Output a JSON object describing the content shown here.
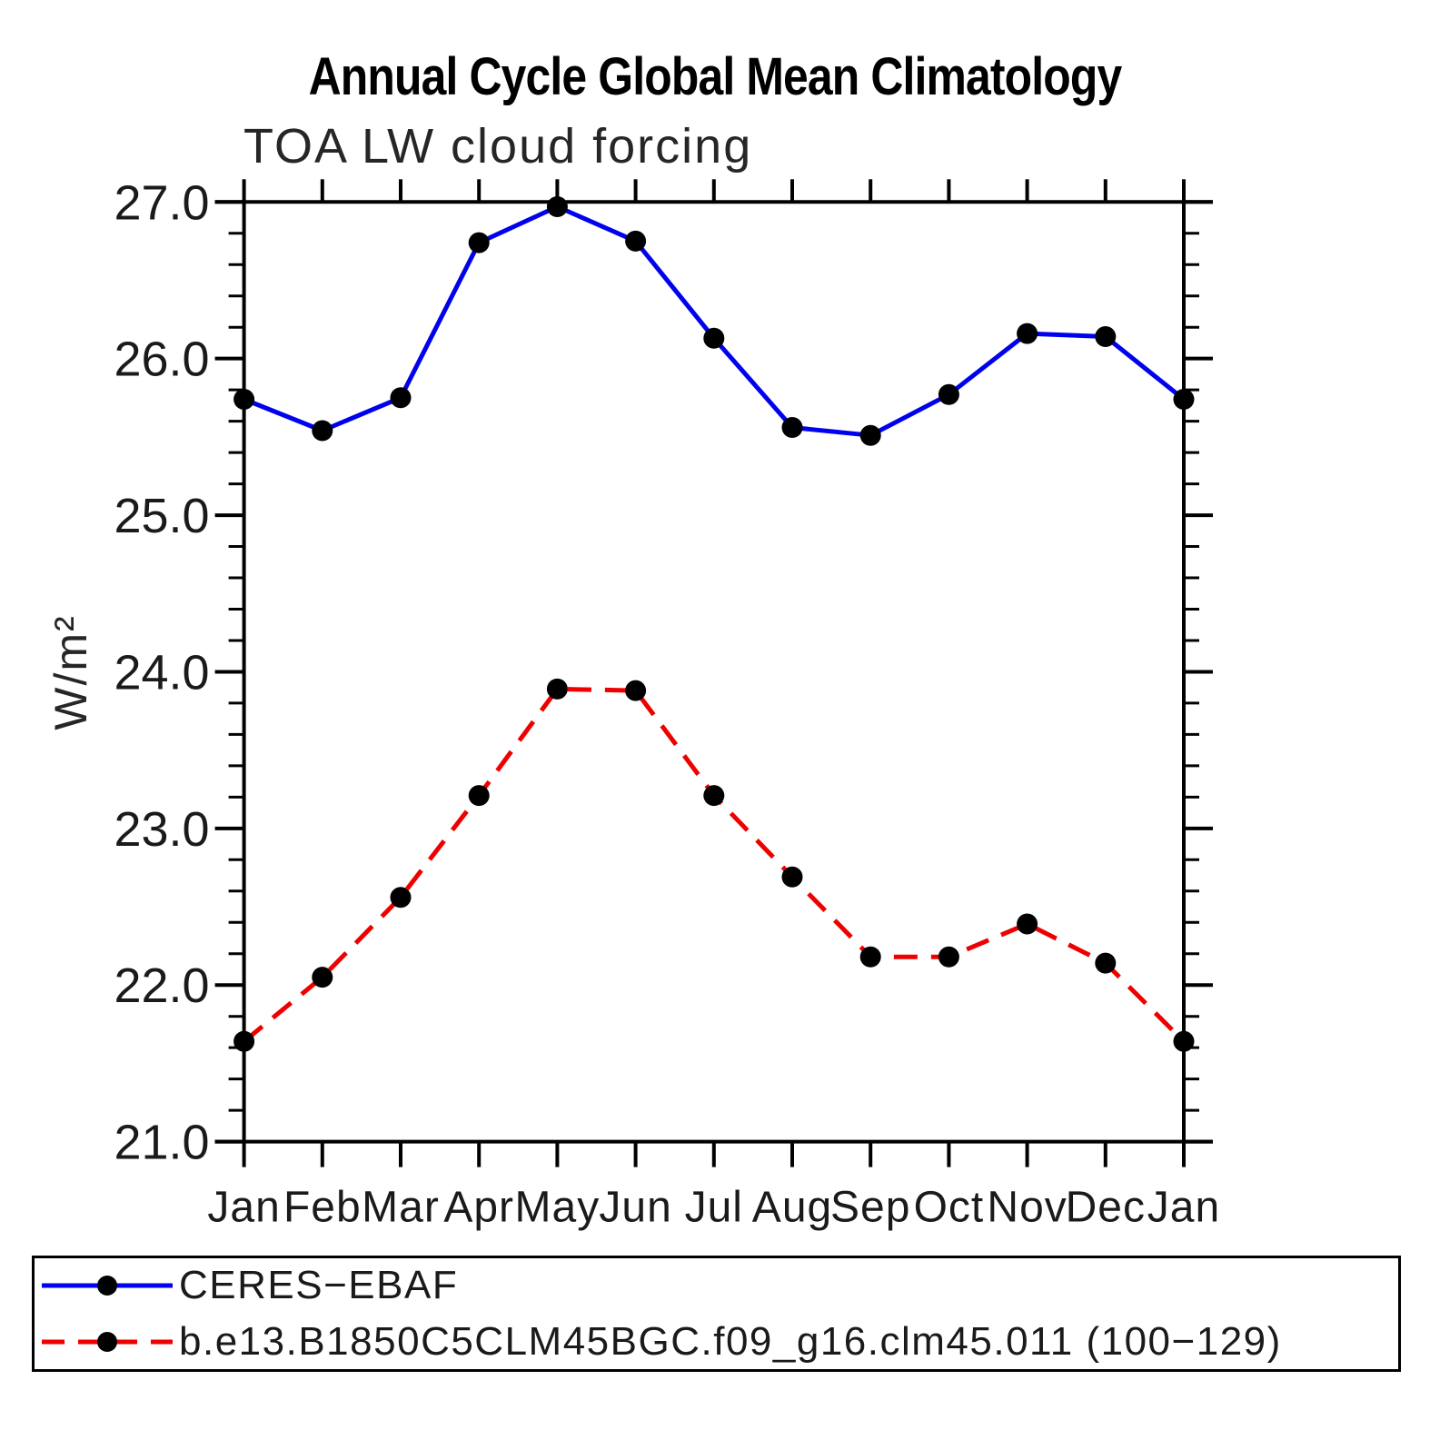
{
  "chart_data": {
    "type": "line",
    "title": "Annual Cycle Global Mean Climatology",
    "subtitle": "TOA LW cloud forcing",
    "ylabel": "W/m²",
    "xlabel": "",
    "categories": [
      "Jan",
      "Feb",
      "Mar",
      "Apr",
      "May",
      "Jun",
      "Jul",
      "Aug",
      "Sep",
      "Oct",
      "Nov",
      "Dec",
      "Jan"
    ],
    "ylim": [
      21.0,
      27.0
    ],
    "y_major_step": 1.0,
    "y_minor_step": 0.2,
    "y_tick_labels": [
      "21.0",
      "22.0",
      "23.0",
      "24.0",
      "25.0",
      "26.0",
      "27.0"
    ],
    "grid": false,
    "legend_position": "bottom",
    "axis_color": "#000000",
    "text_color": "#1a1a1a",
    "series": [
      {
        "name": "CERES−EBAF",
        "line_style": "solid",
        "color": "#0000ee",
        "marker": "filled-circle",
        "marker_color": "#000000",
        "values": [
          25.74,
          25.54,
          25.75,
          26.74,
          26.97,
          26.75,
          26.13,
          25.56,
          25.51,
          25.77,
          26.16,
          26.14,
          25.74
        ]
      },
      {
        "name": "b.e13.B1850C5CLM45BGC.f09_g16.clm45.011 (100−129)",
        "line_style": "dashed",
        "color": "#ee0000",
        "marker": "filled-circle",
        "marker_color": "#000000",
        "values": [
          21.64,
          22.05,
          22.56,
          23.21,
          23.89,
          23.88,
          23.21,
          22.69,
          22.18,
          22.18,
          22.39,
          22.14,
          21.64
        ]
      }
    ]
  }
}
